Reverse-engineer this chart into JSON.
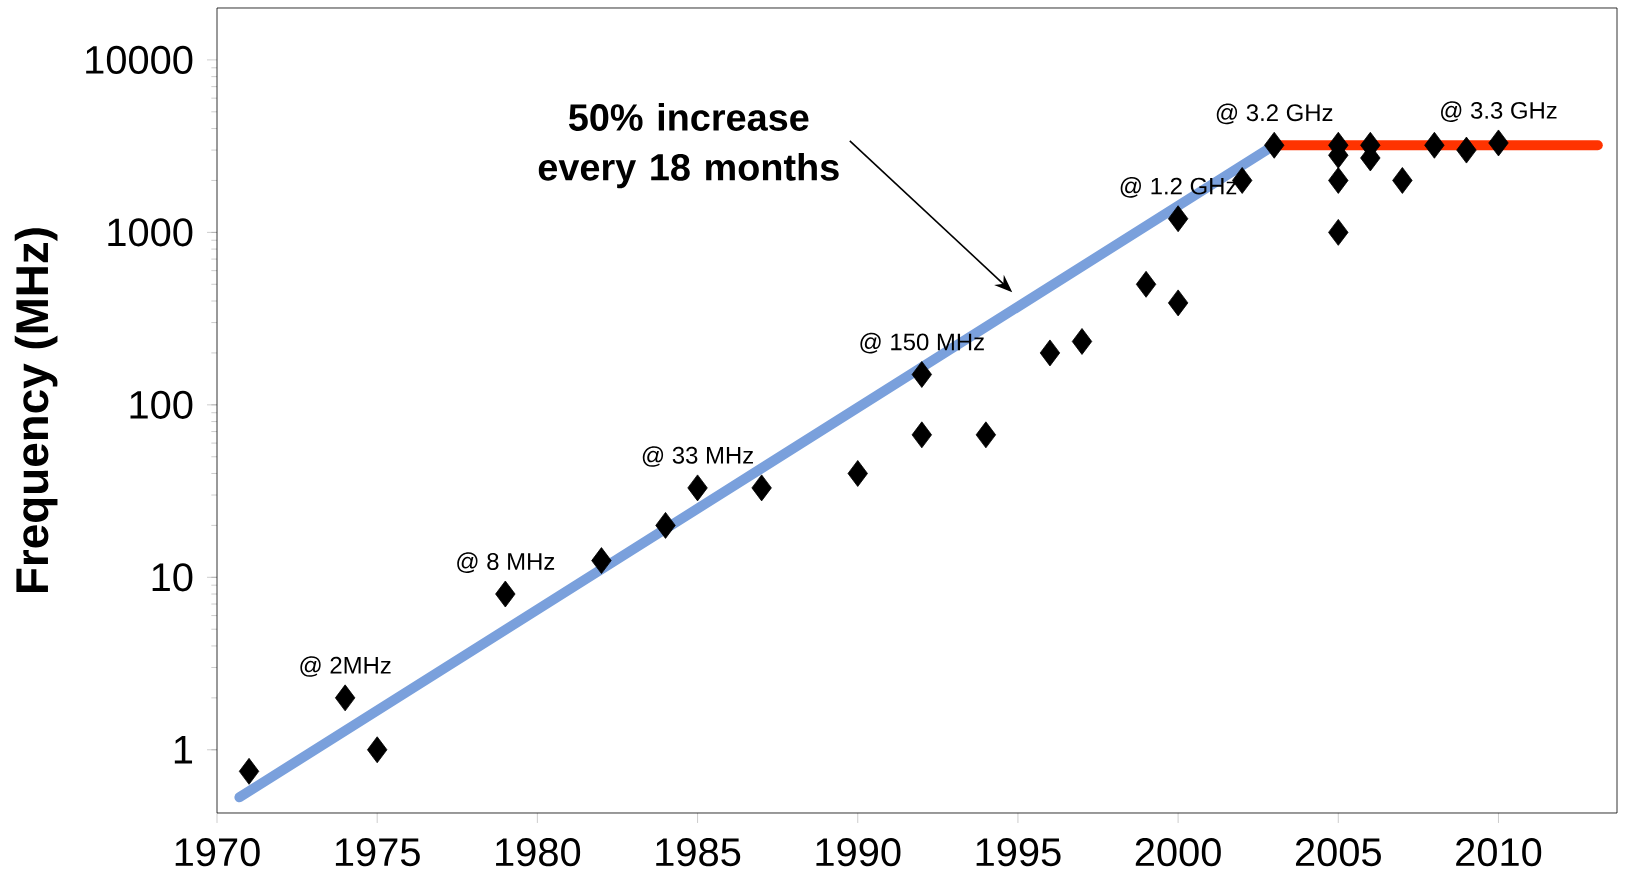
{
  "chart_data": {
    "type": "scatter",
    "ylabel": "Frequency (MHz)",
    "log": "y",
    "grid": false,
    "xlim": [
      1970,
      2013.7
    ],
    "ylim": [
      0.43,
      20000
    ],
    "xticks": [
      1970,
      1975,
      1980,
      1985,
      1990,
      1995,
      2000,
      2005,
      2010
    ],
    "yticks": [
      1,
      10,
      100,
      1000,
      10000
    ],
    "series": [
      {
        "type": "line",
        "marker": "none",
        "color": "#7aa0dc",
        "x": [
          1970.7,
          2003
        ],
        "values": [
          0.53,
          3200
        ]
      },
      {
        "type": "line",
        "marker": "none",
        "color": "#ff3300",
        "x": [
          2003,
          2013.1
        ],
        "values": [
          3200,
          3200
        ]
      },
      {
        "marker": "diamond",
        "color": "#000000",
        "x": [
          1971,
          1974,
          1975,
          1979,
          1982,
          1984,
          1985,
          1987,
          1990,
          1992,
          1992,
          1994,
          1996,
          1997,
          1999,
          2000,
          2000,
          2002,
          2003,
          2005,
          2005,
          2005,
          2005,
          2006,
          2006,
          2007,
          2008,
          2009,
          2010
        ],
        "values": [
          0.75,
          2,
          1,
          8,
          12.5,
          20,
          33,
          33,
          40,
          150,
          67,
          67,
          200,
          233,
          500,
          390,
          1200,
          2000,
          3200,
          3200,
          2800,
          2000,
          1000,
          3200,
          2700,
          2000,
          3200,
          3000,
          3300
        ]
      }
    ],
    "annotations": [
      "50% increase every 18 months",
      {
        "text": "@ 2MHz",
        "x": 1974,
        "y": 2
      },
      {
        "text": "@ 8 MHz",
        "x": 1979,
        "y": 8
      },
      {
        "text": "@ 33 MHz",
        "x": 1985,
        "y": 33
      },
      {
        "text": "@ 150 MHz",
        "x": 1992,
        "y": 150
      },
      {
        "text": "@ 1.2 GHz",
        "x": 2000,
        "y": 1200
      },
      {
        "text": "@ 3.2 GHz",
        "x": 2003,
        "y": 3200
      },
      {
        "text": "@ 3.3 GHz",
        "x": 2010,
        "y": 3300
      }
    ]
  }
}
